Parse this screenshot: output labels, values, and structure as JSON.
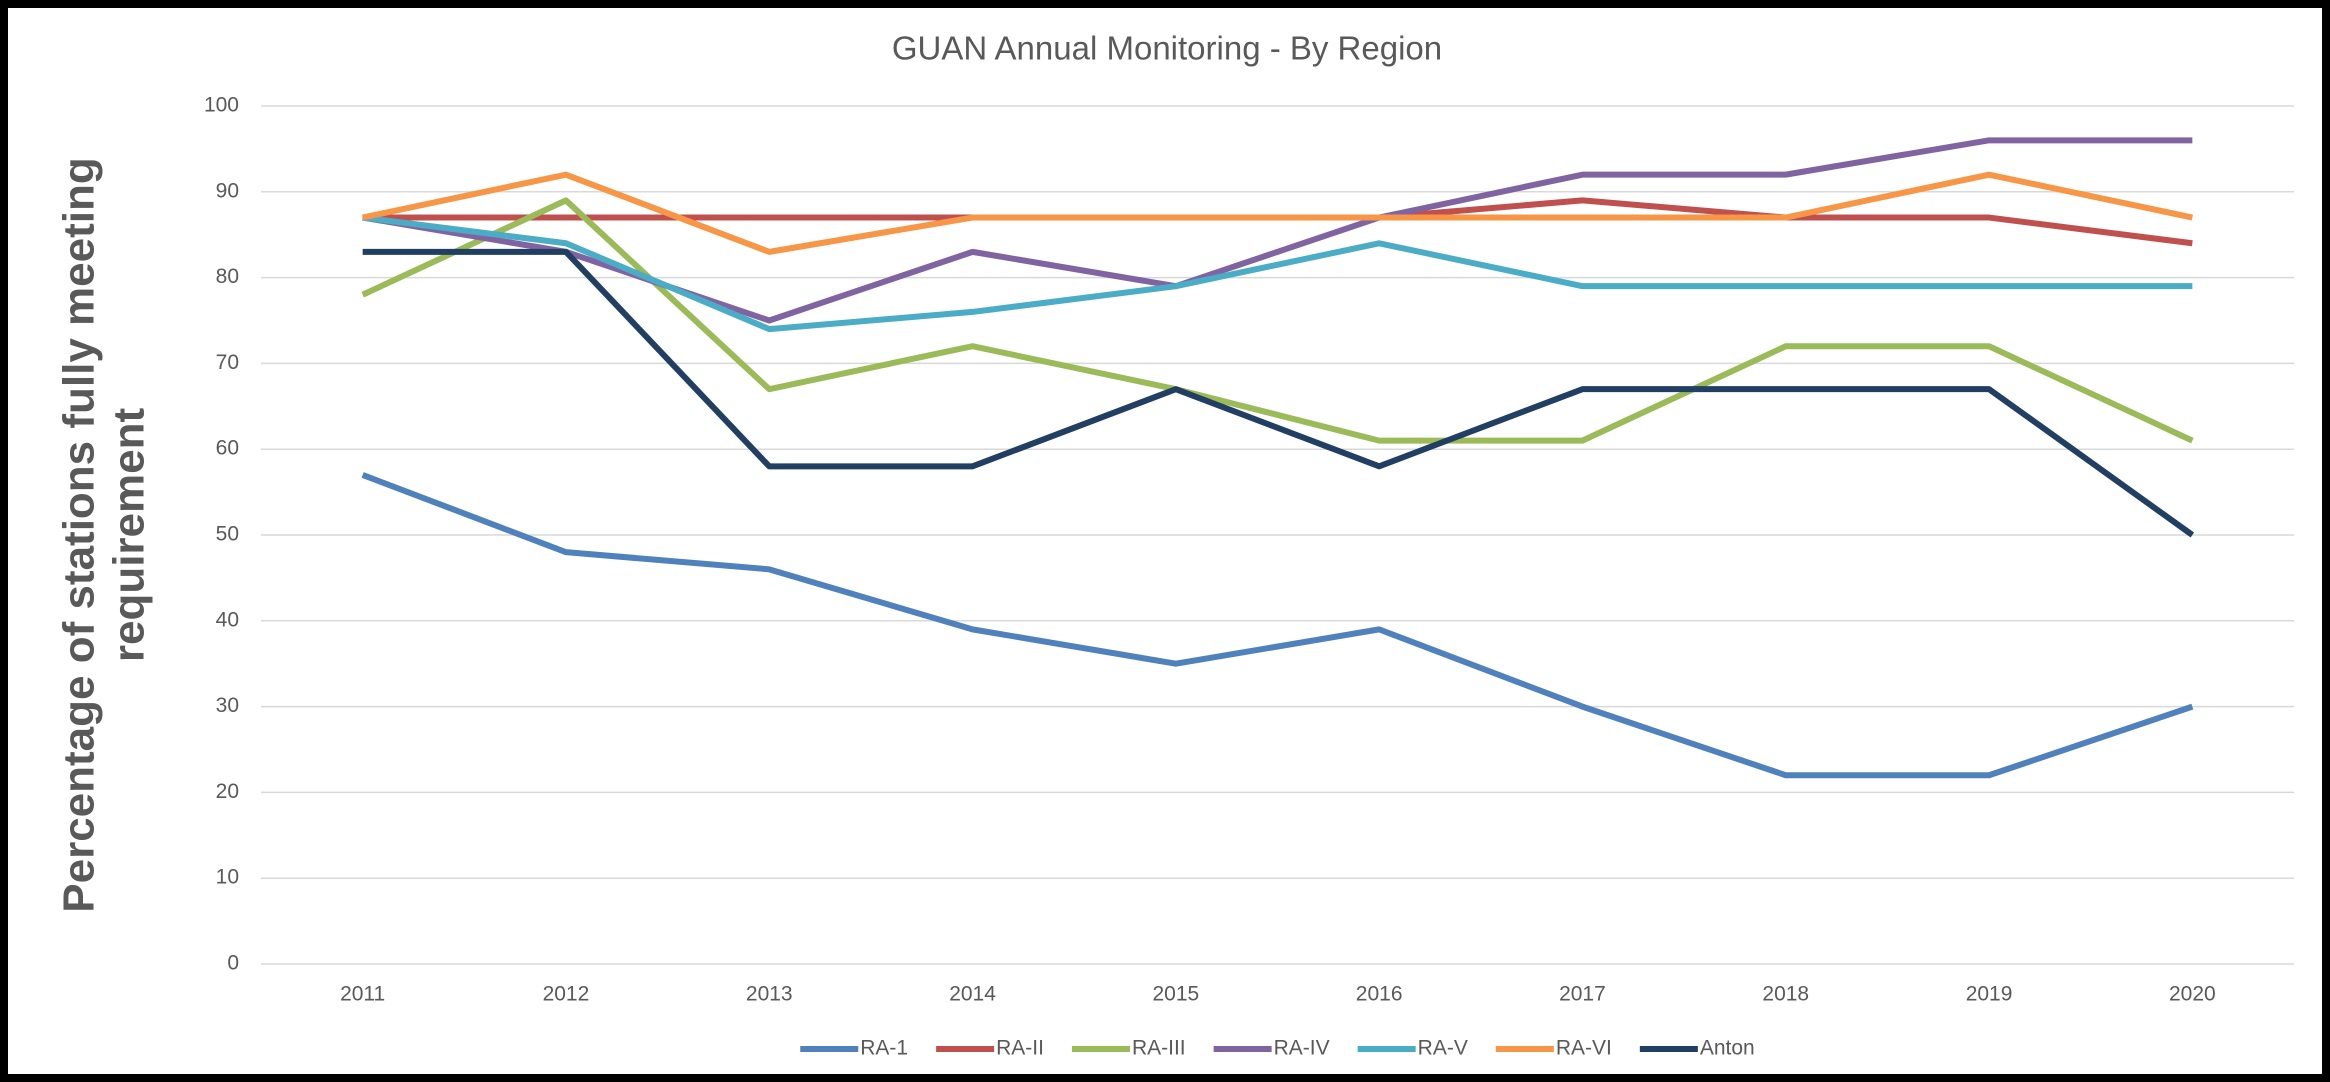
{
  "chart_data": {
    "type": "line",
    "title": "GUAN Annual Monitoring - By Region",
    "ylabel": [
      "Percentage of stations fully meeting",
      "requirement"
    ],
    "categories": [
      "2011",
      "2012",
      "2013",
      "2014",
      "2015",
      "2016",
      "2017",
      "2018",
      "2019",
      "2020"
    ],
    "series": [
      {
        "name": "RA-1",
        "color": "#4f81bd",
        "values": [
          57,
          48,
          46,
          39,
          35,
          39,
          30,
          22,
          22,
          30
        ]
      },
      {
        "name": "RA-II",
        "color": "#c0504d",
        "values": [
          87,
          87,
          87,
          87,
          87,
          87,
          89,
          87,
          87,
          84
        ]
      },
      {
        "name": "RA-III",
        "color": "#9bbb59",
        "values": [
          78,
          89,
          67,
          72,
          67,
          61,
          61,
          72,
          72,
          61
        ]
      },
      {
        "name": "RA-IV",
        "color": "#8064a2",
        "values": [
          87,
          83,
          75,
          83,
          79,
          87,
          92,
          92,
          96,
          96
        ]
      },
      {
        "name": "RA-V",
        "color": "#4bacc6",
        "values": [
          87,
          84,
          74,
          76,
          79,
          84,
          79,
          79,
          79,
          79
        ]
      },
      {
        "name": "RA-VI",
        "color": "#f79646",
        "values": [
          87,
          92,
          83,
          87,
          87,
          87,
          87,
          87,
          92,
          87
        ]
      },
      {
        "name": "Anton",
        "color": "#203f63",
        "values": [
          83,
          83,
          58,
          58,
          67,
          58,
          67,
          67,
          67,
          50
        ]
      }
    ],
    "ylim": [
      0,
      100
    ],
    "yticks": [
      0,
      10,
      20,
      30,
      40,
      50,
      60,
      70,
      80,
      90,
      100
    ],
    "grid": true,
    "legend": "bottom"
  }
}
